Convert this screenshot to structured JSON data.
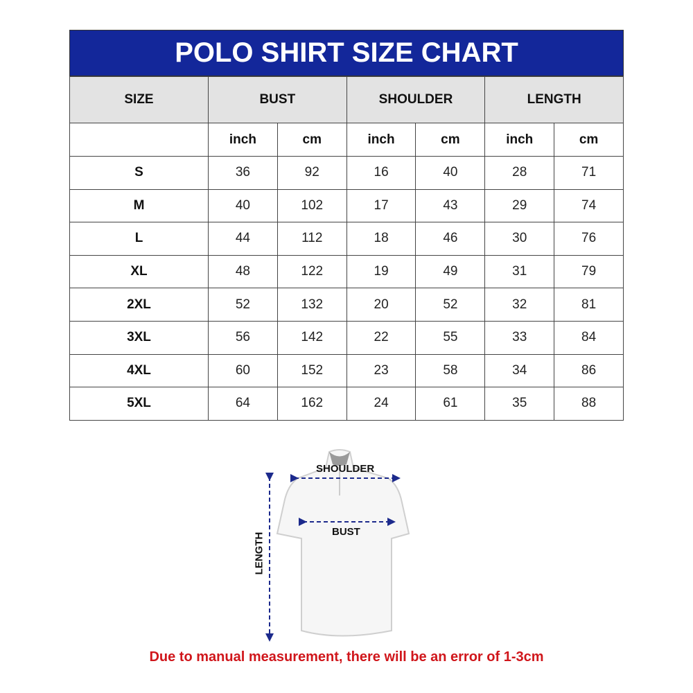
{
  "title": "POLO SHIRT SIZE CHART",
  "headers": {
    "size": "SIZE",
    "bust": "BUST",
    "shoulder": "SHOULDER",
    "length": "LENGTH"
  },
  "units": [
    "inch",
    "cm",
    "inch",
    "cm",
    "inch",
    "cm"
  ],
  "rows": [
    {
      "size": "S",
      "values": [
        "36",
        "92",
        "16",
        "40",
        "28",
        "71"
      ]
    },
    {
      "size": "M",
      "values": [
        "40",
        "102",
        "17",
        "43",
        "29",
        "74"
      ]
    },
    {
      "size": "L",
      "values": [
        "44",
        "112",
        "18",
        "46",
        "30",
        "76"
      ]
    },
    {
      "size": "XL",
      "values": [
        "48",
        "122",
        "19",
        "49",
        "31",
        "79"
      ]
    },
    {
      "size": "2XL",
      "values": [
        "52",
        "132",
        "20",
        "52",
        "32",
        "81"
      ]
    },
    {
      "size": "3XL",
      "values": [
        "56",
        "142",
        "22",
        "55",
        "33",
        "84"
      ]
    },
    {
      "size": "4XL",
      "values": [
        "60",
        "152",
        "23",
        "58",
        "34",
        "86"
      ]
    },
    {
      "size": "5XL",
      "values": [
        "64",
        "162",
        "24",
        "61",
        "35",
        "88"
      ]
    }
  ],
  "diagram": {
    "shoulder": "SHOULDER",
    "bust": "BUST",
    "length": "LENGTH"
  },
  "note": "Due to manual measurement, there will be an error of 1-3cm",
  "colors": {
    "header": "#13279a",
    "note": "#d0161b",
    "arrow": "#1c2a8c"
  }
}
